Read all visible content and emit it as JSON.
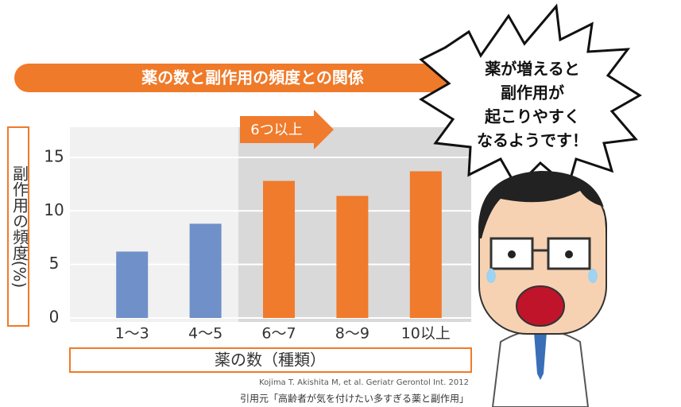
{
  "chart_data": {
    "type": "bar",
    "title": "薬の数と副作用の頻度との関係",
    "y_label": "副作用の頻度(%)",
    "x_label": "薬の数（種類）",
    "categories": [
      "1〜3",
      "4〜5",
      "6〜7",
      "8〜9",
      "10以上"
    ],
    "values": [
      6.2,
      8.8,
      12.8,
      11.4,
      13.7
    ],
    "colors": [
      "#6f90c8",
      "#6f90c8",
      "#f07b2c",
      "#f07b2c",
      "#f07b2c"
    ],
    "ylim": [
      0,
      17
    ],
    "yticks": [
      0,
      5,
      10,
      15
    ],
    "grid": true,
    "annotation": "6つ以上",
    "callout": [
      "薬が増えると",
      "副作用が",
      "起こりやすく",
      "なるようです！"
    ],
    "source": "Kojima T. Akishita M, et al. Geriatr Gerontol Int. 2012",
    "citation": "引用元「高齢者が気を付けたい多すぎる薬と副作用」"
  }
}
